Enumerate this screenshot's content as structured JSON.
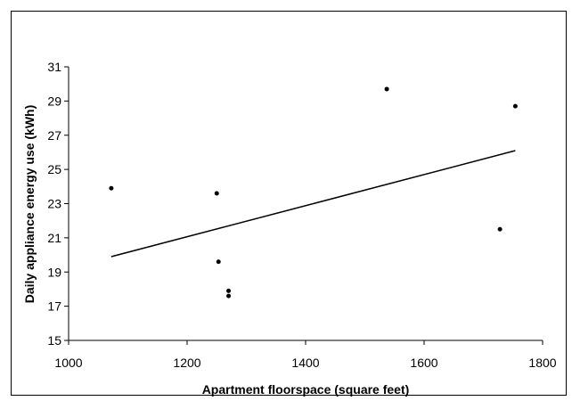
{
  "chart_data": {
    "type": "scatter",
    "title": "",
    "xlabel": "Apartment floorspace (square feet)",
    "ylabel": "Daily appliance energy use (kWh)",
    "xlim": [
      1000,
      1800
    ],
    "ylim": [
      15,
      31
    ],
    "xticks": [
      1000,
      1200,
      1400,
      1600,
      1800
    ],
    "yticks": [
      15,
      17,
      19,
      21,
      23,
      25,
      27,
      29,
      31
    ],
    "x_tick_labels": [
      "1000",
      "1200",
      "1400",
      "1600",
      "1800"
    ],
    "y_tick_labels": [
      "15",
      "17",
      "19",
      "21",
      "23",
      "25",
      "27",
      "29",
      "31"
    ],
    "grid": false,
    "legend": "none",
    "points": [
      {
        "x": 1072,
        "y": 23.9
      },
      {
        "x": 1250,
        "y": 23.6
      },
      {
        "x": 1253,
        "y": 19.6
      },
      {
        "x": 1270,
        "y": 17.9
      },
      {
        "x": 1270,
        "y": 17.6
      },
      {
        "x": 1537,
        "y": 29.7
      },
      {
        "x": 1728,
        "y": 21.5
      },
      {
        "x": 1754,
        "y": 28.7
      }
    ],
    "trendline": {
      "type": "linear",
      "points": [
        {
          "x": 1072,
          "y": 19.9
        },
        {
          "x": 1754,
          "y": 26.1
        }
      ]
    },
    "colors": {
      "points": "#000000",
      "line": "#000000",
      "axis": "#000000"
    }
  }
}
